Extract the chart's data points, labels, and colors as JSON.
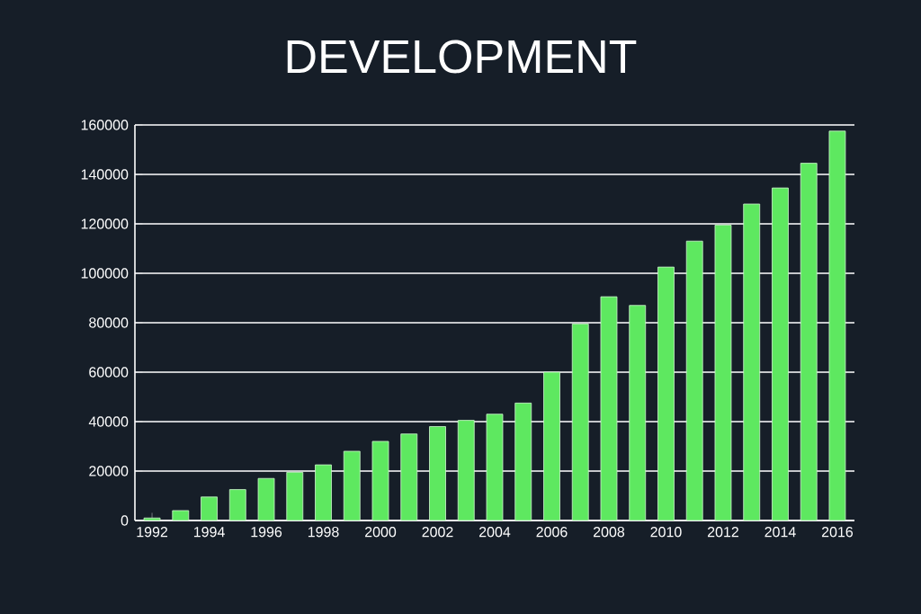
{
  "chart_data": {
    "type": "bar",
    "title": "DEVELOPMENT",
    "categories": [
      "1992",
      null,
      "1994",
      null,
      "1996",
      null,
      "1998",
      null,
      "2000",
      null,
      "2002",
      null,
      "2004",
      null,
      "2006",
      null,
      "2008",
      null,
      "2010",
      null,
      "2012",
      null,
      "2014",
      null,
      "2016"
    ],
    "values": [
      1000,
      4000,
      9500,
      12500,
      17000,
      19500,
      22500,
      28000,
      32000,
      35000,
      38000,
      40500,
      43000,
      47500,
      60000,
      79500,
      90500,
      87000,
      102500,
      113000,
      119500,
      128000,
      134500,
      144500,
      157500
    ],
    "color": "#5ee860",
    "ylim": [
      0,
      160000
    ],
    "yticks": [
      0,
      20000,
      40000,
      60000,
      80000,
      100000,
      120000,
      140000,
      160000
    ],
    "grid": "y"
  }
}
